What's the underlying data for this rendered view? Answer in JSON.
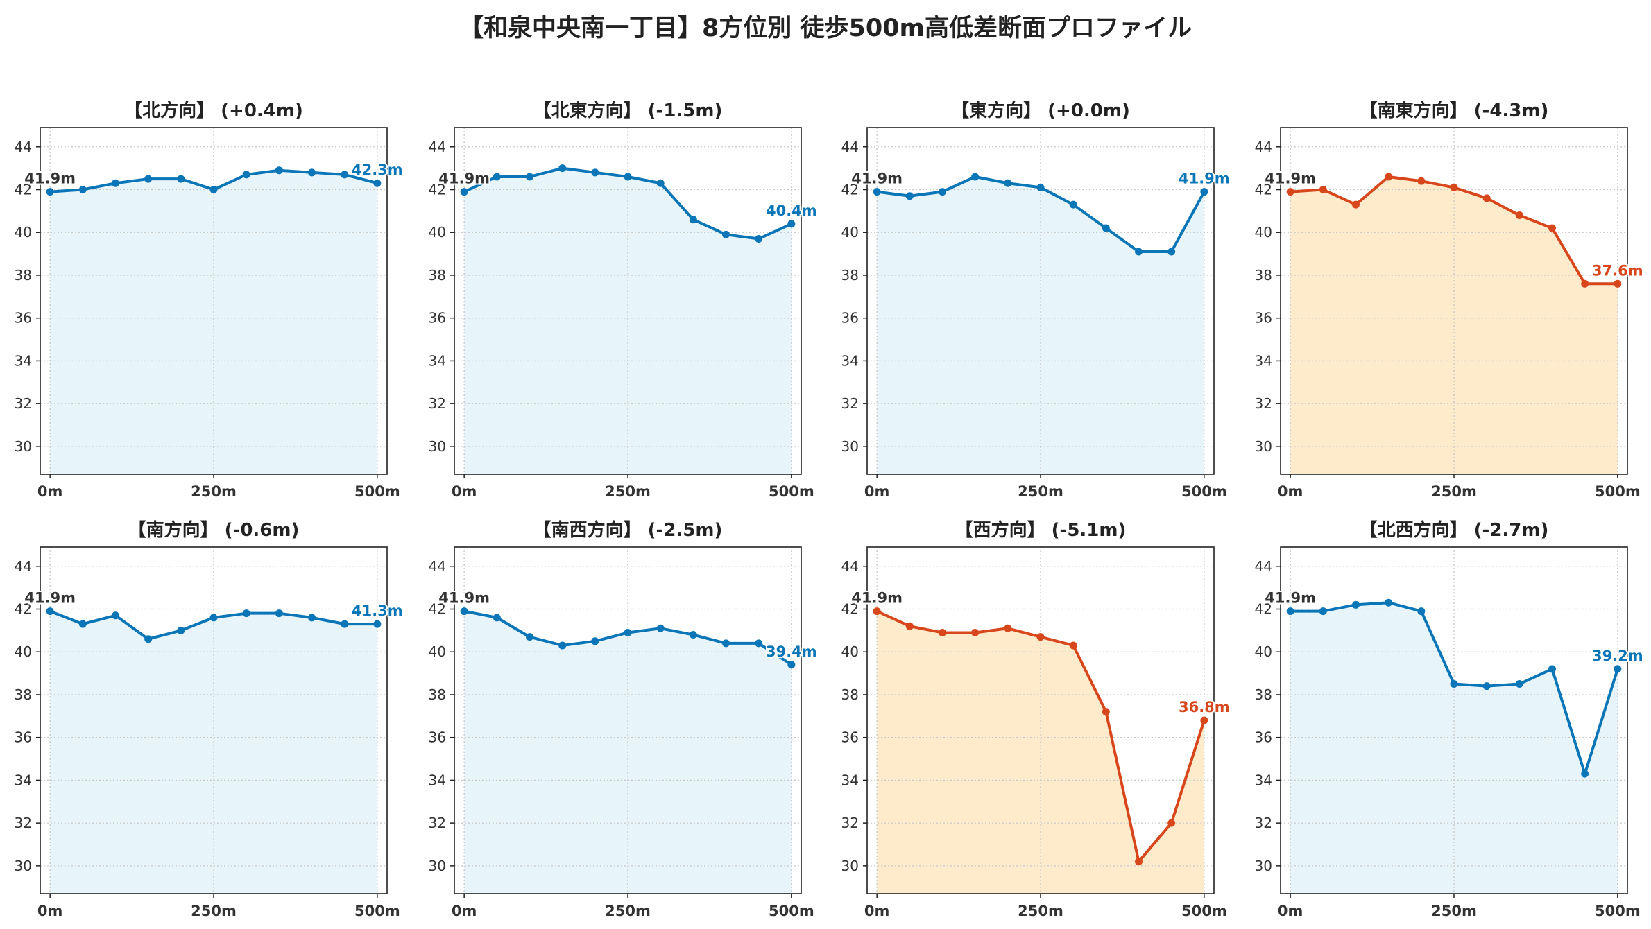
{
  "title": "【和泉中央南一丁目】8方位別 徒歩500m高低差断面プロファイル",
  "colors": {
    "up_line": "#0a76b8",
    "up_fill": "#e7f5fb",
    "down_line": "#d8461b",
    "down_fill": "#fdebcc",
    "start_label": "#333333",
    "grid": "#c8c8c8"
  },
  "chart_data": [
    {
      "type": "area",
      "title": "【北方向】 (+0.4m)",
      "x": [
        0,
        50,
        100,
        150,
        200,
        250,
        300,
        350,
        400,
        450,
        500
      ],
      "values": [
        41.9,
        42.0,
        42.3,
        42.5,
        42.5,
        42.0,
        42.7,
        42.9,
        42.8,
        42.7,
        42.3
      ],
      "start_label": "41.9m",
      "end_label": "42.3m",
      "style": "up",
      "xticks": [
        "0m",
        "250m",
        "500m"
      ],
      "yticks": [
        30,
        32,
        34,
        36,
        38,
        40,
        42,
        44
      ],
      "ylim": [
        28.7,
        44.9
      ],
      "xlim": [
        -15,
        515
      ],
      "grid": true
    },
    {
      "type": "area",
      "title": "【北東方向】 (-1.5m)",
      "x": [
        0,
        50,
        100,
        150,
        200,
        250,
        300,
        350,
        400,
        450,
        500
      ],
      "values": [
        41.9,
        42.6,
        42.6,
        43.0,
        42.8,
        42.6,
        42.3,
        40.6,
        39.9,
        39.7,
        40.4
      ],
      "start_label": "41.9m",
      "end_label": "40.4m",
      "style": "up",
      "xticks": [
        "0m",
        "250m",
        "500m"
      ],
      "yticks": [
        30,
        32,
        34,
        36,
        38,
        40,
        42,
        44
      ],
      "ylim": [
        28.7,
        44.9
      ],
      "xlim": [
        -15,
        515
      ],
      "grid": true
    },
    {
      "type": "area",
      "title": "【東方向】 (+0.0m)",
      "x": [
        0,
        50,
        100,
        150,
        200,
        250,
        300,
        350,
        400,
        450,
        500
      ],
      "values": [
        41.9,
        41.7,
        41.9,
        42.6,
        42.3,
        42.1,
        41.3,
        40.2,
        39.1,
        39.1,
        41.9
      ],
      "start_label": "41.9m",
      "end_label": "41.9m",
      "style": "up",
      "xticks": [
        "0m",
        "250m",
        "500m"
      ],
      "yticks": [
        30,
        32,
        34,
        36,
        38,
        40,
        42,
        44
      ],
      "ylim": [
        28.7,
        44.9
      ],
      "xlim": [
        -15,
        515
      ],
      "grid": true
    },
    {
      "type": "area",
      "title": "【南東方向】 (-4.3m)",
      "x": [
        0,
        50,
        100,
        150,
        200,
        250,
        300,
        350,
        400,
        450,
        500
      ],
      "values": [
        41.9,
        42.0,
        41.3,
        42.6,
        42.4,
        42.1,
        41.6,
        40.8,
        40.2,
        37.6,
        37.6
      ],
      "start_label": "41.9m",
      "end_label": "37.6m",
      "style": "down",
      "xticks": [
        "0m",
        "250m",
        "500m"
      ],
      "yticks": [
        30,
        32,
        34,
        36,
        38,
        40,
        42,
        44
      ],
      "ylim": [
        28.7,
        44.9
      ],
      "xlim": [
        -15,
        515
      ],
      "grid": true
    },
    {
      "type": "area",
      "title": "【南方向】 (-0.6m)",
      "x": [
        0,
        50,
        100,
        150,
        200,
        250,
        300,
        350,
        400,
        450,
        500
      ],
      "values": [
        41.9,
        41.3,
        41.7,
        40.6,
        41.0,
        41.6,
        41.8,
        41.8,
        41.6,
        41.3,
        41.3
      ],
      "start_label": "41.9m",
      "end_label": "41.3m",
      "style": "up",
      "xticks": [
        "0m",
        "250m",
        "500m"
      ],
      "yticks": [
        30,
        32,
        34,
        36,
        38,
        40,
        42,
        44
      ],
      "ylim": [
        28.7,
        44.9
      ],
      "xlim": [
        -15,
        515
      ],
      "grid": true
    },
    {
      "type": "area",
      "title": "【南西方向】 (-2.5m)",
      "x": [
        0,
        50,
        100,
        150,
        200,
        250,
        300,
        350,
        400,
        450,
        500
      ],
      "values": [
        41.9,
        41.6,
        40.7,
        40.3,
        40.5,
        40.9,
        41.1,
        40.8,
        40.4,
        40.4,
        39.4
      ],
      "start_label": "41.9m",
      "end_label": "39.4m",
      "style": "up",
      "xticks": [
        "0m",
        "250m",
        "500m"
      ],
      "yticks": [
        30,
        32,
        34,
        36,
        38,
        40,
        42,
        44
      ],
      "ylim": [
        28.7,
        44.9
      ],
      "xlim": [
        -15,
        515
      ],
      "grid": true
    },
    {
      "type": "area",
      "title": "【西方向】 (-5.1m)",
      "x": [
        0,
        50,
        100,
        150,
        200,
        250,
        300,
        350,
        400,
        450,
        500
      ],
      "values": [
        41.9,
        41.2,
        40.9,
        40.9,
        41.1,
        40.7,
        40.3,
        37.2,
        30.2,
        32.0,
        36.8
      ],
      "start_label": "41.9m",
      "end_label": "36.8m",
      "style": "down",
      "xticks": [
        "0m",
        "250m",
        "500m"
      ],
      "yticks": [
        30,
        32,
        34,
        36,
        38,
        40,
        42,
        44
      ],
      "ylim": [
        28.7,
        44.9
      ],
      "xlim": [
        -15,
        515
      ],
      "grid": true
    },
    {
      "type": "area",
      "title": "【北西方向】 (-2.7m)",
      "x": [
        0,
        50,
        100,
        150,
        200,
        250,
        300,
        350,
        400,
        450,
        500
      ],
      "values": [
        41.9,
        41.9,
        42.2,
        42.3,
        41.9,
        38.5,
        38.4,
        38.5,
        39.2,
        34.3,
        39.2
      ],
      "start_label": "41.9m",
      "end_label": "39.2m",
      "style": "up",
      "xticks": [
        "0m",
        "250m",
        "500m"
      ],
      "yticks": [
        30,
        32,
        34,
        36,
        38,
        40,
        42,
        44
      ],
      "ylim": [
        28.7,
        44.9
      ],
      "xlim": [
        -15,
        515
      ],
      "grid": true
    }
  ]
}
